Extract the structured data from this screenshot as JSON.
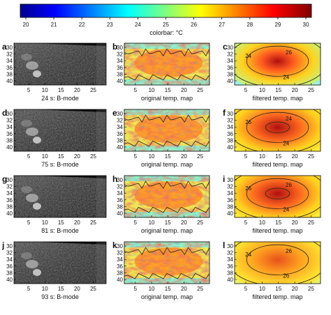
{
  "colorbar": {
    "ticks": [
      "20",
      "21",
      "22",
      "23",
      "24",
      "25",
      "26",
      "27",
      "28",
      "29",
      "30"
    ],
    "label": "colorbar: °C"
  },
  "rows": [
    {
      "bmode": {
        "letter": "a",
        "caption": "24 s: B-mode"
      },
      "orig": {
        "letter": "b",
        "caption": "original temp. map"
      },
      "filt": {
        "letter": "c",
        "caption": "filtered temp. map",
        "contour_labels": [
          "24",
          "26",
          "24"
        ]
      }
    },
    {
      "bmode": {
        "letter": "d",
        "caption": "75 s: B-mode"
      },
      "orig": {
        "letter": "e",
        "caption": "original temp. map"
      },
      "filt": {
        "letter": "f",
        "caption": "filtered temp. map",
        "contour_labels": [
          "26",
          "24",
          "24"
        ]
      }
    },
    {
      "bmode": {
        "letter": "g",
        "caption": "81 s: B-mode"
      },
      "orig": {
        "letter": "h",
        "caption": "original temp. map"
      },
      "filt": {
        "letter": "i",
        "caption": "filtered temp. map",
        "contour_labels": [
          "26",
          "26",
          "24"
        ]
      }
    },
    {
      "bmode": {
        "letter": "j",
        "caption": "93 s: B-mode"
      },
      "orig": {
        "letter": "k",
        "caption": "original temp. map"
      },
      "filt": {
        "letter": "l",
        "caption": "filtered temp. map",
        "contour_labels": [
          "24",
          "26",
          "26"
        ]
      }
    }
  ],
  "axes": {
    "y_ticks": [
      "30",
      "32",
      "34",
      "36",
      "38",
      "40"
    ],
    "x_ticks_bmode": [
      "5",
      "10",
      "15",
      "20",
      "25"
    ],
    "x_ticks_map": [
      "5",
      "10",
      "15",
      "20",
      "25"
    ]
  }
}
